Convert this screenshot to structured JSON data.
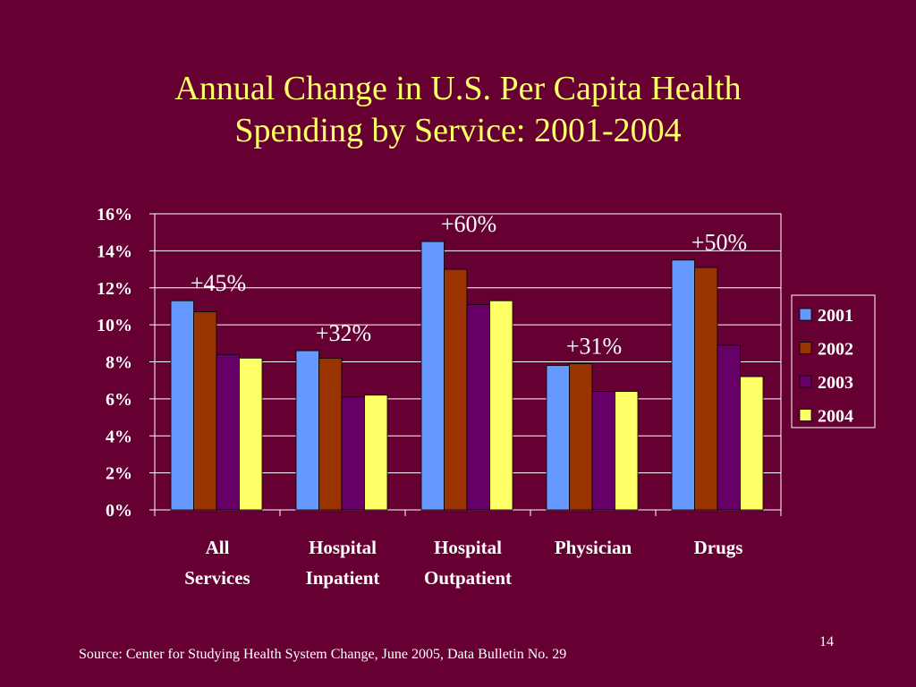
{
  "slide": {
    "title_line1": "Annual Change in U.S. Per Capita Health",
    "title_line2": "Spending by Service: 2001-2004",
    "source": "Source:  Center for Studying Health System Change, June 2005, Data Bulletin No. 29",
    "page_number": "14"
  },
  "colors": {
    "background": "#660033",
    "title": "#ffff66",
    "text": "#ffffff",
    "plot_border": "#ffffff",
    "gridline": "#ffffff"
  },
  "chart_data": {
    "type": "bar",
    "categories": [
      [
        "All",
        "Services"
      ],
      [
        "Hospital",
        "Inpatient"
      ],
      [
        "Hospital",
        "Outpatient"
      ],
      [
        "Physician"
      ],
      [
        "Drugs"
      ]
    ],
    "series": [
      {
        "name": "2001",
        "color": "#6699ff",
        "values": [
          11.3,
          8.6,
          14.5,
          7.8,
          13.5
        ]
      },
      {
        "name": "2002",
        "color": "#993300",
        "values": [
          10.7,
          8.2,
          13.0,
          7.9,
          13.1
        ]
      },
      {
        "name": "2003",
        "color": "#660066",
        "values": [
          8.4,
          6.1,
          11.1,
          6.4,
          8.9
        ]
      },
      {
        "name": "2004",
        "color": "#ffff66",
        "values": [
          8.2,
          6.2,
          11.3,
          6.4,
          7.2
        ]
      }
    ],
    "annotations": [
      "+45%",
      "+32%",
      "+60%",
      "+31%",
      "+50%"
    ],
    "ylim": [
      0,
      16
    ],
    "yticks": [
      "0%",
      "2%",
      "4%",
      "6%",
      "8%",
      "10%",
      "12%",
      "14%",
      "16%"
    ],
    "grid": true,
    "legend_position": "right"
  }
}
